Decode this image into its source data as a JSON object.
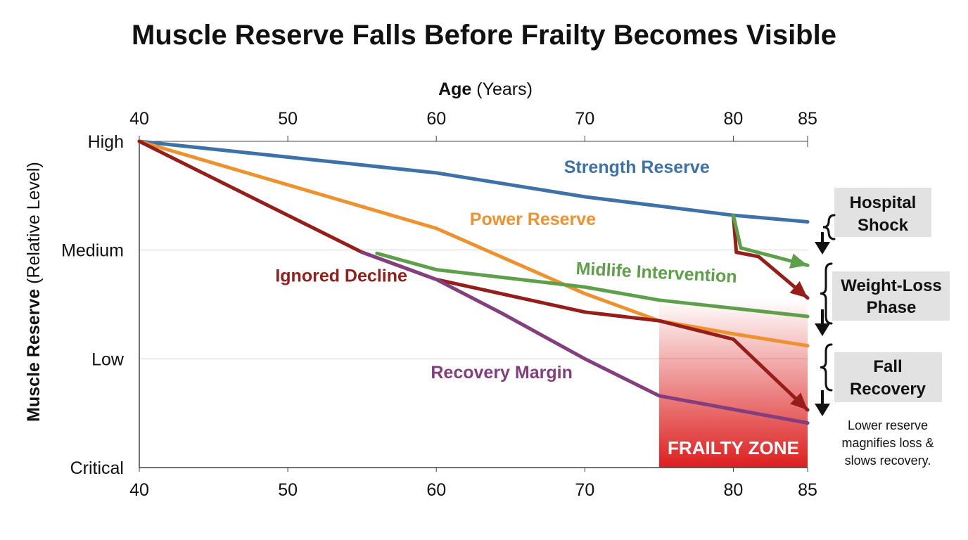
{
  "chart_data": {
    "type": "line",
    "title": "Muscle Reserve Falls Before Frailty Becomes Visible",
    "xlabel_bold": "Age",
    "xlabel_rest": " (Years)",
    "ylabel_bold": "Muscle Reserve",
    "ylabel_rest": " (Relative Level)",
    "xlim": [
      40,
      85
    ],
    "ylim": [
      0,
      3
    ],
    "x_ticks": [
      40,
      50,
      60,
      70,
      80,
      85
    ],
    "y_ticks": [
      {
        "value": 3,
        "label": "High"
      },
      {
        "value": 2,
        "label": "Medium"
      },
      {
        "value": 1,
        "label": "Low"
      },
      {
        "value": 0,
        "label": "Critical"
      }
    ],
    "grid": {
      "horizontal": true,
      "vertical": false
    },
    "series": [
      {
        "name": "Strength Reserve",
        "color": "#3d72a8",
        "points": [
          [
            40,
            3.0
          ],
          [
            60,
            2.71
          ],
          [
            70,
            2.49
          ],
          [
            80,
            2.32
          ],
          [
            85,
            2.26
          ]
        ],
        "label_at": [
          73.5,
          2.71
        ]
      },
      {
        "name": "Power Reserve",
        "color": "#ee922f",
        "points": [
          [
            40,
            3.0
          ],
          [
            60,
            2.2
          ],
          [
            70,
            1.6
          ],
          [
            75,
            1.35
          ],
          [
            80,
            1.23
          ],
          [
            85,
            1.12
          ]
        ],
        "label_at": [
          66.5,
          2.23
        ]
      },
      {
        "name": "Midlife Intervention",
        "color": "#5ea04a",
        "points": [
          [
            56,
            1.97
          ],
          [
            60,
            1.82
          ],
          [
            70,
            1.66
          ],
          [
            75,
            1.54
          ],
          [
            85,
            1.39
          ]
        ],
        "label_at": [
          74.8,
          1.74
        ],
        "label_rotate": 3
      },
      {
        "name": "Ignored Decline",
        "color": "#951d1a",
        "points": [
          [
            40,
            3.0
          ],
          [
            55,
            1.98
          ],
          [
            60,
            1.73
          ],
          [
            70,
            1.43
          ],
          [
            75,
            1.35
          ],
          [
            80,
            1.18
          ],
          [
            85,
            0.53
          ]
        ],
        "label_at": [
          53.6,
          1.71
        ],
        "arrow_end": true
      },
      {
        "name": "Recovery Margin",
        "color": "#833e7e",
        "points": [
          [
            55,
            1.98
          ],
          [
            60,
            1.73
          ],
          [
            64.4,
            1.42
          ],
          [
            70,
            1.0
          ],
          [
            75,
            0.66
          ],
          [
            85,
            0.41
          ]
        ],
        "label_at": [
          64.4,
          0.82
        ]
      },
      {
        "name": "",
        "color": "#951d1a",
        "points": [
          [
            80,
            2.32
          ],
          [
            80.2,
            1.98
          ],
          [
            81.7,
            1.94
          ],
          [
            85,
            1.56
          ]
        ],
        "arrow_end": true
      },
      {
        "name": "",
        "color": "#5ea04a",
        "points": [
          [
            80,
            2.32
          ],
          [
            80.5,
            2.02
          ],
          [
            85,
            1.86
          ]
        ],
        "arrow_end": true
      }
    ],
    "frailty_zone": {
      "label": "FRAILTY ZONE",
      "x_start": 75,
      "x_end": 85,
      "color": "#dd1f1f"
    },
    "events": [
      {
        "line1": "Hospital",
        "line2": "Shock"
      },
      {
        "line1": "Weight-Loss",
        "line2": "Phase"
      },
      {
        "line1": "Fall",
        "line2": "Recovery"
      }
    ],
    "note": [
      "Lower reserve",
      "magnifies loss &",
      "slows recovery."
    ]
  }
}
